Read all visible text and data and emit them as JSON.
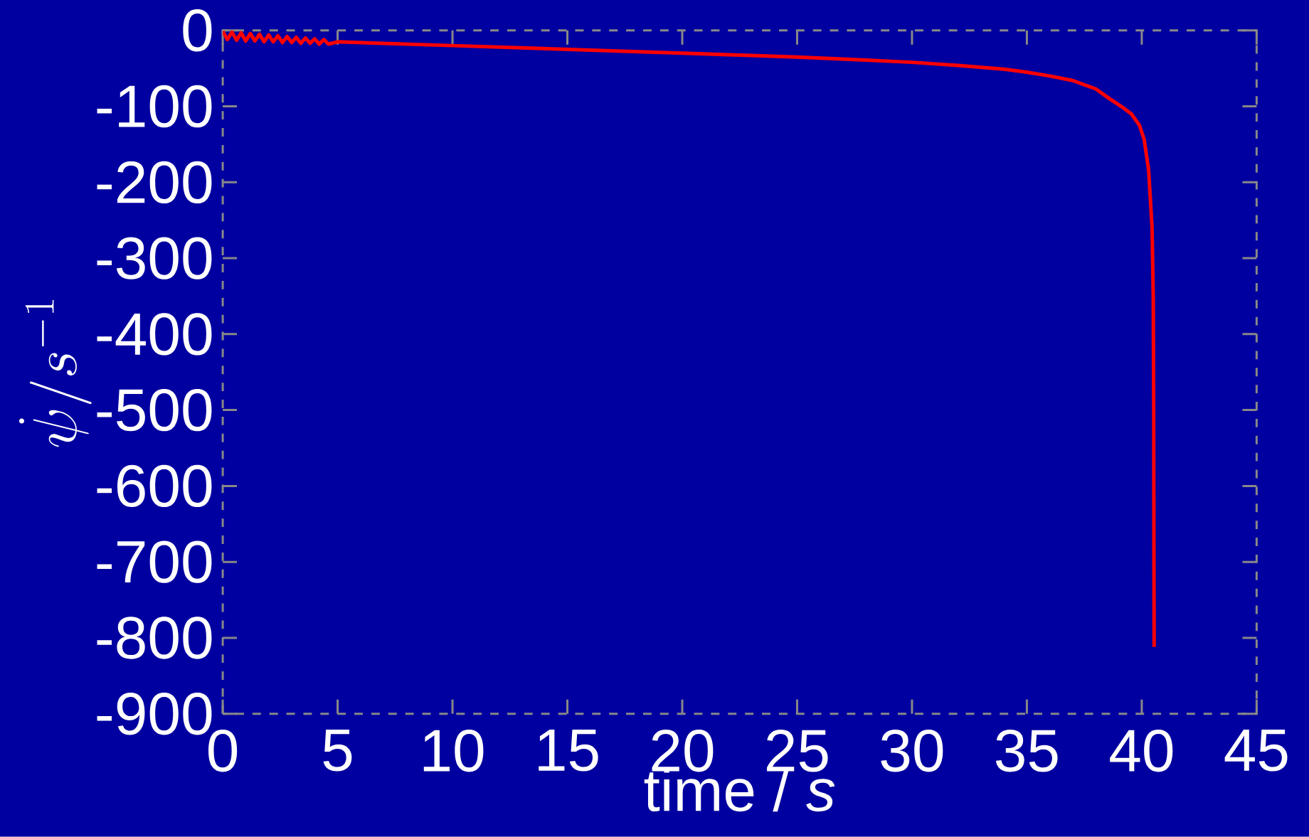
{
  "chart_data": {
    "type": "line",
    "xlabel": "time / *s*",
    "ylabel": "\\dot{\\psi} / s^{-1}",
    "xlim": [
      0,
      45
    ],
    "xticks": [
      0,
      5,
      10,
      15,
      20,
      25,
      30,
      35,
      40,
      45
    ],
    "ylim": [
      -900,
      0
    ],
    "yticks": [
      -900,
      -800,
      -700,
      -600,
      -500,
      -400,
      -300,
      -200,
      -100,
      0
    ],
    "marker": "none",
    "line_style": "solid",
    "series": [
      {
        "color": "#ff0000",
        "x": [
          0,
          0.2,
          0.4,
          0.6,
          0.8,
          1.0,
          1.2,
          1.4,
          1.6,
          1.8,
          2.0,
          2.2,
          2.4,
          2.6,
          2.8,
          3.0,
          3.2,
          3.4,
          3.6,
          3.8,
          4.0,
          4.2,
          4.4,
          4.6,
          5,
          7,
          10,
          13,
          15,
          18,
          20,
          23,
          25,
          28,
          30,
          32,
          34,
          35,
          36,
          37,
          38,
          38.6,
          39.2,
          39.55,
          39.9,
          40.1,
          40.3,
          40.45,
          40.5,
          40.52,
          40.53,
          40.54
        ],
        "values": [
          -1,
          -12,
          -2,
          -13,
          -3,
          -14,
          -4,
          -14,
          -5,
          -15,
          -6,
          -15,
          -7,
          -16,
          -8,
          -16,
          -9,
          -17,
          -10,
          -17,
          -11,
          -18,
          -12,
          -18,
          -15,
          -17,
          -20,
          -23,
          -25,
          -28,
          -30,
          -33,
          -35,
          -39,
          -42,
          -46,
          -51,
          -55,
          -60,
          -66,
          -77,
          -90,
          -102,
          -110,
          -125,
          -143,
          -184,
          -260,
          -350,
          -500,
          -700,
          -812
        ]
      }
    ]
  }
}
